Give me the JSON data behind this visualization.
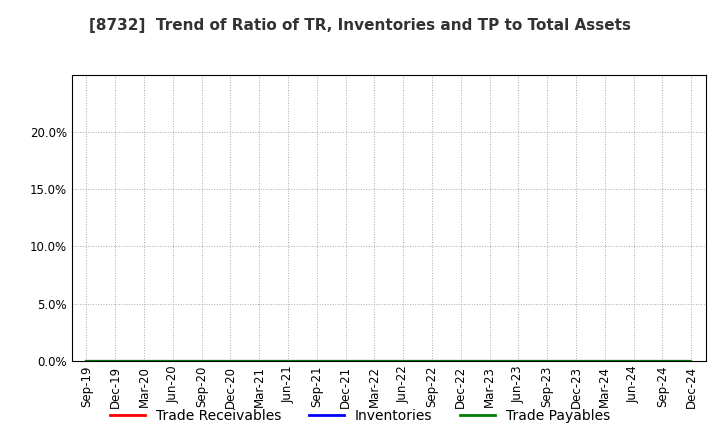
{
  "title": "[8732]  Trend of Ratio of TR, Inventories and TP to Total Assets",
  "x_labels": [
    "Sep-19",
    "Dec-19",
    "Mar-20",
    "Jun-20",
    "Sep-20",
    "Dec-20",
    "Mar-21",
    "Jun-21",
    "Sep-21",
    "Dec-21",
    "Mar-22",
    "Jun-22",
    "Sep-22",
    "Dec-22",
    "Mar-23",
    "Jun-23",
    "Sep-23",
    "Dec-23",
    "Mar-24",
    "Jun-24",
    "Sep-24",
    "Dec-24"
  ],
  "ylim": [
    0.0,
    0.25
  ],
  "yticks": [
    0.0,
    0.05,
    0.1,
    0.15,
    0.2
  ],
  "series": [
    {
      "label": "Trade Receivables",
      "color": "#ff0000",
      "values": [
        0,
        0,
        0,
        0,
        0,
        0,
        0,
        0,
        0,
        0,
        0,
        0,
        0,
        0,
        0,
        0,
        0,
        0,
        0,
        0,
        0,
        0
      ]
    },
    {
      "label": "Inventories",
      "color": "#0000ff",
      "values": [
        0,
        0,
        0,
        0,
        0,
        0,
        0,
        0,
        0,
        0,
        0,
        0,
        0,
        0,
        0,
        0,
        0,
        0,
        0,
        0,
        0,
        0
      ]
    },
    {
      "label": "Trade Payables",
      "color": "#008000",
      "values": [
        0,
        0,
        0,
        0,
        0,
        0,
        0,
        0,
        0,
        0,
        0,
        0,
        0,
        0,
        0,
        0,
        0,
        0,
        0,
        0,
        0,
        0
      ]
    }
  ],
  "background_color": "#ffffff",
  "plot_bg_color": "#ffffff",
  "grid_color": "#aaaaaa",
  "title_fontsize": 11,
  "legend_fontsize": 10,
  "tick_fontsize": 8.5
}
